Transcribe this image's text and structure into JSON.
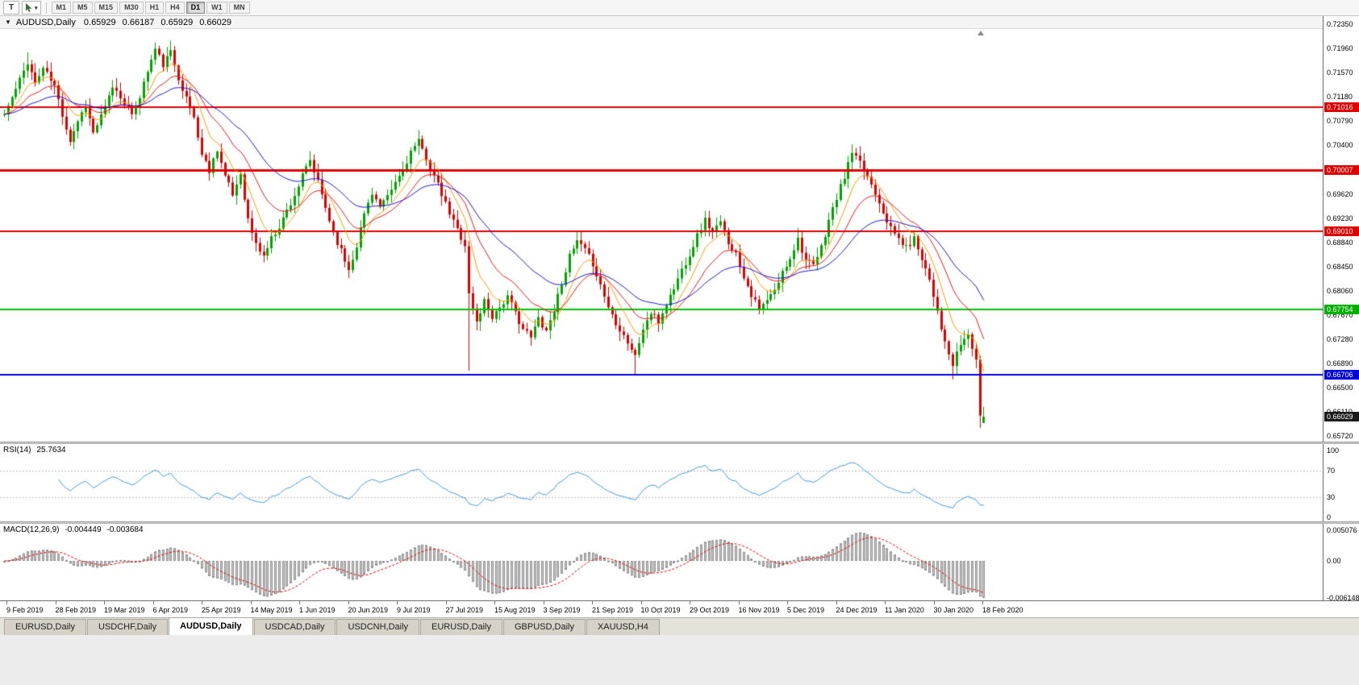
{
  "toolbar": {
    "text_tool_label": "T",
    "cursor_tool_caret": "▾",
    "timeframes": [
      "M1",
      "M5",
      "M15",
      "M30",
      "H1",
      "H4",
      "D1",
      "W1",
      "MN"
    ],
    "active_timeframe": "D1"
  },
  "chart": {
    "title": "AUDUSD,Daily",
    "menu_icon": "▼",
    "ohlc": {
      "open": "0.65929",
      "high": "0.66187",
      "low": "0.65929",
      "close": "0.66029"
    },
    "price_axis": {
      "ticks": [
        "0.72350",
        "0.71960",
        "0.71570",
        "0.71180",
        "0.70790",
        "0.70400",
        "0.69620",
        "0.69230",
        "0.68840",
        "0.68450",
        "0.68060",
        "0.67670",
        "0.67280",
        "0.66890",
        "0.66500",
        "0.66110",
        "0.65720"
      ],
      "badges": [
        {
          "label": "0.71016",
          "value": 0.71016,
          "color": "#e00000"
        },
        {
          "label": "0.70007",
          "value": 0.70007,
          "color": "#e00000"
        },
        {
          "label": "0.69010",
          "value": 0.6901,
          "color": "#e00000"
        },
        {
          "label": "0.67754",
          "value": 0.67754,
          "color": "#00b000"
        },
        {
          "label": "0.66706",
          "value": 0.66706,
          "color": "#0000d8"
        },
        {
          "label": "0.66029",
          "value": 0.66029,
          "color": "#1a1a1a"
        }
      ]
    },
    "hlines": [
      {
        "price": 0.71016,
        "color": "#e00000",
        "width": 2
      },
      {
        "price": 0.70007,
        "color": "#e00000",
        "width": 3
      },
      {
        "price": 0.6901,
        "color": "#e00000",
        "width": 2
      },
      {
        "price": 0.67754,
        "color": "#00c000",
        "width": 2
      },
      {
        "price": 0.66706,
        "color": "#0000e0",
        "width": 2
      }
    ]
  },
  "rsi": {
    "label": "RSI(14)",
    "value": "25.7634",
    "color": "#3e9bd9",
    "levels": [
      70,
      30
    ],
    "ticks": [
      {
        "label": "100",
        "value": 100
      },
      {
        "label": "70",
        "value": 70
      },
      {
        "label": "30",
        "value": 30
      },
      {
        "label": "0",
        "value": 0
      }
    ]
  },
  "macd": {
    "label": "MACD(12,26,9)",
    "main_value": "-0.004449",
    "signal_value": "-0.003684",
    "histogram_color": "#cdcdcd",
    "histogram_outline": "#8f8f8f",
    "signal_color": "#dd0000",
    "ticks": [
      {
        "label": "0.005076",
        "value": 0.005076
      },
      {
        "label": "0.00",
        "value": 0
      },
      {
        "label": "-0.006148",
        "value": -0.006148
      }
    ]
  },
  "date_axis": [
    "9 Feb 2019",
    "28 Feb 2019",
    "19 Mar 2019",
    "6 Apr 2019",
    "25 Apr 2019",
    "14 May 2019",
    "1 Jun 2019",
    "20 Jun 2019",
    "9 Jul 2019",
    "27 Jul 2019",
    "15 Aug 2019",
    "3 Sep 2019",
    "21 Sep 2019",
    "10 Oct 2019",
    "29 Oct 2019",
    "16 Nov 2019",
    "5 Dec 2019",
    "24 Dec 2019",
    "11 Jan 2020",
    "30 Jan 2020",
    "18 Feb 2020"
  ],
  "tabs": [
    {
      "label": "EURUSD,Daily",
      "active": false
    },
    {
      "label": "USDCHF,Daily",
      "active": false
    },
    {
      "label": "AUDUSD,Daily",
      "active": true
    },
    {
      "label": "USDCAD,Daily",
      "active": false
    },
    {
      "label": "USDCNH,Daily",
      "active": false
    },
    {
      "label": "EURUSD,Daily",
      "active": false
    },
    {
      "label": "GBPUSD,Daily",
      "active": false
    },
    {
      "label": "XAUUSD,H4",
      "active": false
    }
  ],
  "chart_data": {
    "type": "candlestick",
    "symbol": "AUDUSD",
    "timeframe": "Daily",
    "candle_count": 254,
    "noise_seed": 11,
    "y_axis_range": [
      0.65628,
      0.72275
    ],
    "up_color": "#00a400",
    "down_color": "#dd0000",
    "price_anchors": [
      [
        0,
        0.709
      ],
      [
        3,
        0.713
      ],
      [
        6,
        0.7175
      ],
      [
        8,
        0.714
      ],
      [
        10,
        0.7165
      ],
      [
        13,
        0.7135
      ],
      [
        15,
        0.709
      ],
      [
        17,
        0.7048
      ],
      [
        19,
        0.708
      ],
      [
        21,
        0.7105
      ],
      [
        23,
        0.706
      ],
      [
        26,
        0.71
      ],
      [
        28,
        0.7135
      ],
      [
        31,
        0.711
      ],
      [
        33,
        0.7085
      ],
      [
        35,
        0.712
      ],
      [
        37,
        0.716
      ],
      [
        39,
        0.7195
      ],
      [
        41,
        0.717
      ],
      [
        43,
        0.719
      ],
      [
        45,
        0.715
      ],
      [
        47,
        0.7115
      ],
      [
        49,
        0.7085
      ],
      [
        51,
        0.7025
      ],
      [
        53,
        0.7
      ],
      [
        55,
        0.7035
      ],
      [
        57,
        0.699
      ],
      [
        59,
        0.696
      ],
      [
        61,
        0.6995
      ],
      [
        63,
        0.692
      ],
      [
        65,
        0.688
      ],
      [
        67,
        0.6862
      ],
      [
        69,
        0.689
      ],
      [
        71,
        0.691
      ],
      [
        73,
        0.6935
      ],
      [
        75,
        0.696
      ],
      [
        77,
        0.699
      ],
      [
        79,
        0.7015
      ],
      [
        81,
        0.698
      ],
      [
        83,
        0.694
      ],
      [
        85,
        0.69
      ],
      [
        87,
        0.687
      ],
      [
        89,
        0.684
      ],
      [
        91,
        0.688
      ],
      [
        93,
        0.693
      ],
      [
        95,
        0.6965
      ],
      [
        97,
        0.694
      ],
      [
        99,
        0.6955
      ],
      [
        101,
        0.698
      ],
      [
        103,
        0.7
      ],
      [
        105,
        0.703
      ],
      [
        107,
        0.7045
      ],
      [
        109,
        0.702
      ],
      [
        111,
        0.699
      ],
      [
        113,
        0.696
      ],
      [
        115,
        0.693
      ],
      [
        117,
        0.6905
      ],
      [
        119,
        0.688
      ],
      [
        120,
        0.68
      ],
      [
        122,
        0.6755
      ],
      [
        124,
        0.679
      ],
      [
        126,
        0.6765
      ],
      [
        128,
        0.678
      ],
      [
        130,
        0.6795
      ],
      [
        132,
        0.677
      ],
      [
        134,
        0.6745
      ],
      [
        136,
        0.673
      ],
      [
        138,
        0.6762
      ],
      [
        140,
        0.6742
      ],
      [
        142,
        0.6775
      ],
      [
        144,
        0.682
      ],
      [
        146,
        0.686
      ],
      [
        148,
        0.6885
      ],
      [
        150,
        0.687
      ],
      [
        152,
        0.685
      ],
      [
        154,
        0.6815
      ],
      [
        156,
        0.678
      ],
      [
        158,
        0.6755
      ],
      [
        160,
        0.6735
      ],
      [
        163,
        0.67
      ],
      [
        165,
        0.6745
      ],
      [
        167,
        0.677
      ],
      [
        169,
        0.6755
      ],
      [
        171,
        0.6785
      ],
      [
        173,
        0.681
      ],
      [
        175,
        0.684
      ],
      [
        177,
        0.6865
      ],
      [
        179,
        0.6895
      ],
      [
        181,
        0.692
      ],
      [
        183,
        0.69
      ],
      [
        185,
        0.6915
      ],
      [
        187,
        0.6885
      ],
      [
        189,
        0.6865
      ],
      [
        191,
        0.683
      ],
      [
        193,
        0.68
      ],
      [
        195,
        0.6775
      ],
      [
        197,
        0.679
      ],
      [
        199,
        0.6805
      ],
      [
        201,
        0.6835
      ],
      [
        203,
        0.686
      ],
      [
        205,
        0.689
      ],
      [
        207,
        0.6855
      ],
      [
        209,
        0.6845
      ],
      [
        211,
        0.6875
      ],
      [
        213,
        0.692
      ],
      [
        215,
        0.6955
      ],
      [
        217,
        0.699
      ],
      [
        219,
        0.7028
      ],
      [
        221,
        0.701
      ],
      [
        223,
        0.699
      ],
      [
        225,
        0.6965
      ],
      [
        227,
        0.6935
      ],
      [
        229,
        0.6905
      ],
      [
        231,
        0.689
      ],
      [
        233,
        0.6875
      ],
      [
        235,
        0.689
      ],
      [
        237,
        0.686
      ],
      [
        239,
        0.6825
      ],
      [
        241,
        0.6775
      ],
      [
        243,
        0.672
      ],
      [
        245,
        0.6685
      ],
      [
        247,
        0.672
      ],
      [
        249,
        0.6735
      ],
      [
        251,
        0.6695
      ],
      [
        252,
        0.66
      ],
      [
        253,
        0.66029
      ]
    ],
    "spikes": [
      {
        "index": 6,
        "high": 0.719
      },
      {
        "index": 39,
        "high": 0.7206
      },
      {
        "index": 120,
        "low": 0.6677
      },
      {
        "index": 163,
        "low": 0.667
      },
      {
        "index": 245,
        "low": 0.6663
      },
      {
        "index": 252,
        "low": 0.6585
      }
    ],
    "last_candle": {
      "open": 0.65929,
      "high": 0.66187,
      "low": 0.65929,
      "close": 0.66029
    },
    "moving_averages": [
      {
        "type": "ema",
        "period": 8,
        "color": "#ff9900"
      },
      {
        "type": "ema",
        "period": 17,
        "color": "#e81515"
      },
      {
        "type": "ema",
        "period": 36,
        "color": "#1515dd"
      }
    ]
  }
}
